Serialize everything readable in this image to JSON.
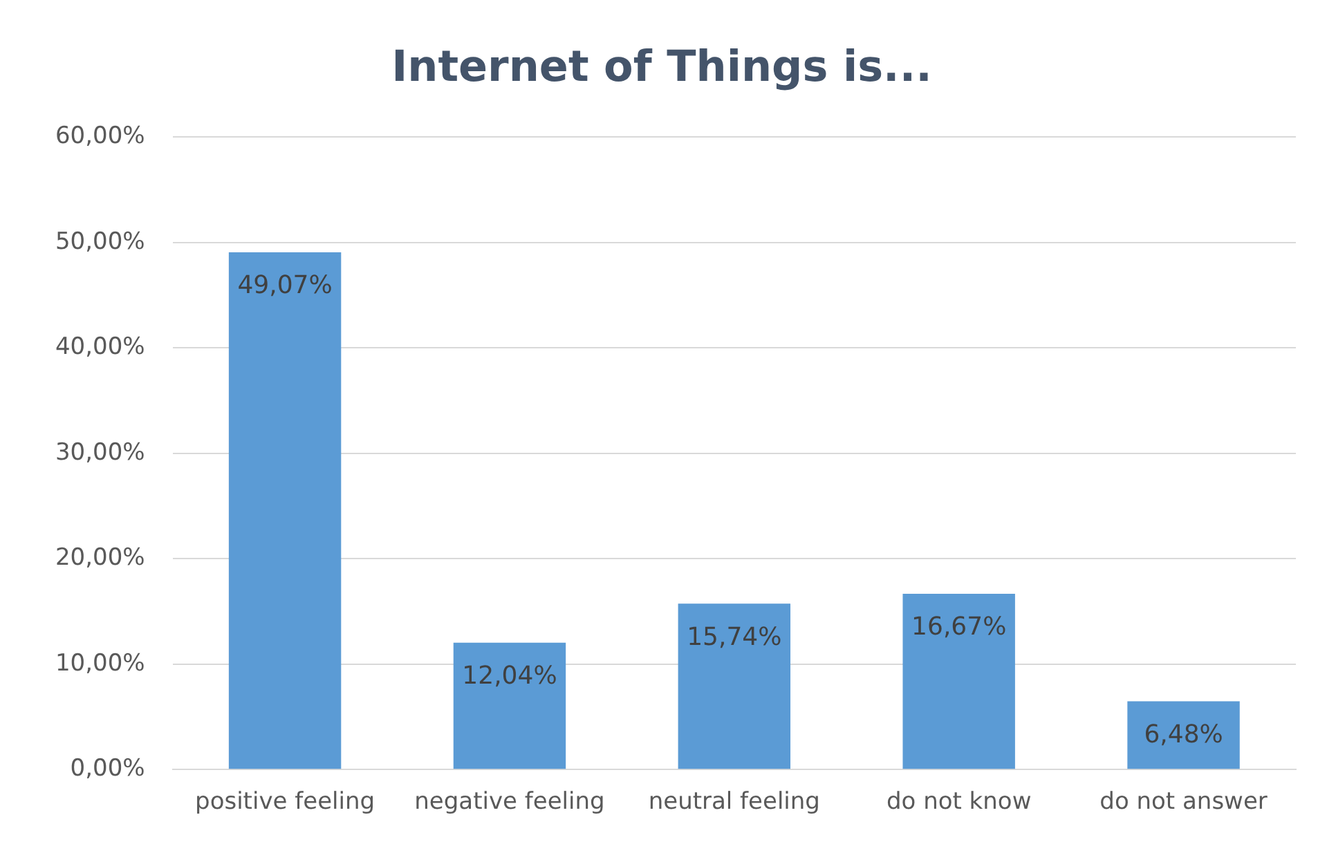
{
  "chart_data": {
    "type": "bar",
    "title": "Internet of Things is...",
    "categories": [
      "positive feeling",
      "negative feeling",
      "neutral feeling",
      "do not know",
      "do not answer"
    ],
    "values": [
      49.07,
      12.04,
      15.74,
      16.67,
      6.48
    ],
    "value_labels": [
      "49,07%",
      "12,04%",
      "15,74%",
      "16,67%",
      "6,48%"
    ],
    "color": "#5b9bd5",
    "ylim": [
      0,
      60
    ],
    "yticks": [
      {
        "value": 0,
        "label": "0,00%"
      },
      {
        "value": 10,
        "label": "10,00%"
      },
      {
        "value": 20,
        "label": "20,00%"
      },
      {
        "value": 30,
        "label": "30,00%"
      },
      {
        "value": 40,
        "label": "40,00%"
      },
      {
        "value": 50,
        "label": "50,00%"
      },
      {
        "value": 60,
        "label": "60,00%"
      }
    ],
    "grid": "y",
    "legend": false
  }
}
